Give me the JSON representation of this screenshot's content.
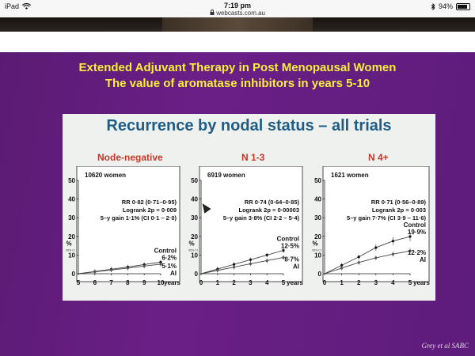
{
  "status_bar": {
    "device": "iPad",
    "time": "7:19 pm",
    "url": "webcasts.com.au",
    "battery": "94%",
    "icons": [
      "wifi-icon",
      "lock-icon",
      "bluetooth-icon",
      "battery-icon"
    ]
  },
  "slide": {
    "title_line1": "Extended Adjuvant Therapy in Post Menopausal Women",
    "title_line2": "The value of aromatase inhibitors in years 5-10",
    "panel_title": "Recurrence by nodal status – all trials",
    "citation": "Grey et al SABC",
    "colors": {
      "background": "#6a1f86",
      "title": "#f7ef3a",
      "panel_title": "#1f5c86",
      "subtitle": "#c0392b"
    }
  },
  "chart_data": [
    {
      "type": "line",
      "subtitle": "Node-negative",
      "women": "10620 women",
      "stats": [
        "RR 0·82 (0·71–0·95)",
        "Logrank 2p = 0·009",
        "5–y gain 1·1% (CI 0·1 – 2·0)"
      ],
      "ylabel": "%",
      "ylabel_sub": "95% CI",
      "xlabel": "years",
      "x_ticks": [
        "5",
        "6",
        "7",
        "8",
        "9",
        "10"
      ],
      "y_ticks": [
        "0",
        "10",
        "20",
        "30",
        "40",
        "50"
      ],
      "ylim": [
        0,
        50
      ],
      "x": [
        5,
        6,
        7,
        8,
        9,
        10
      ],
      "series": [
        {
          "name": "Control",
          "final_label": "6·2%",
          "values": [
            0,
            1.2,
            2.4,
            3.6,
            4.9,
            6.2
          ]
        },
        {
          "name": "AI",
          "final_label": "5·1%",
          "values": [
            0,
            1.0,
            2.0,
            3.0,
            4.1,
            5.1
          ]
        }
      ]
    },
    {
      "type": "line",
      "subtitle": "N 1-3",
      "women": "6919 women",
      "stats": [
        "RR 0·74 (0·64–0·85)",
        "Logrank 2p = 0·00003",
        "5–y gain 3·8% (CI 2·2 – 5·4)"
      ],
      "ylabel": "%",
      "ylabel_sub": "95% CI",
      "xlabel": "years",
      "x_ticks": [
        "0",
        "1",
        "2",
        "3",
        "4",
        "5"
      ],
      "y_ticks": [
        "0",
        "10",
        "20",
        "30",
        "40",
        "50"
      ],
      "ylim": [
        0,
        50
      ],
      "x": [
        0,
        1,
        2,
        3,
        4,
        5
      ],
      "series": [
        {
          "name": "Control",
          "final_label": "12·5%",
          "values": [
            0,
            2.5,
            5.0,
            7.5,
            10.0,
            12.5
          ]
        },
        {
          "name": "AI",
          "final_label": "8·7%",
          "values": [
            0,
            1.8,
            3.5,
            5.3,
            7.0,
            8.7
          ]
        }
      ]
    },
    {
      "type": "line",
      "subtitle": "N 4+",
      "women": "1621 women",
      "stats": [
        "RR 0·71 (0·56–0·89)",
        "Logrank 2p = 0·003",
        "5–y gain 7·7% (CI 3·9 – 11·6)"
      ],
      "ylabel": "%",
      "ylabel_sub": "95% CI",
      "xlabel": "years",
      "x_ticks": [
        "0",
        "1",
        "2",
        "3",
        "4",
        "5"
      ],
      "y_ticks": [
        "0",
        "10",
        "20",
        "30",
        "40",
        "50"
      ],
      "ylim": [
        0,
        50
      ],
      "x": [
        0,
        1,
        2,
        3,
        4,
        5
      ],
      "series": [
        {
          "name": "Control",
          "final_label": "19·9%",
          "values": [
            0,
            4.5,
            9.0,
            14.0,
            17.5,
            19.9
          ]
        },
        {
          "name": "AI",
          "final_label": "12·2%",
          "values": [
            0,
            3.0,
            6.0,
            8.5,
            10.5,
            12.2
          ]
        }
      ]
    }
  ]
}
